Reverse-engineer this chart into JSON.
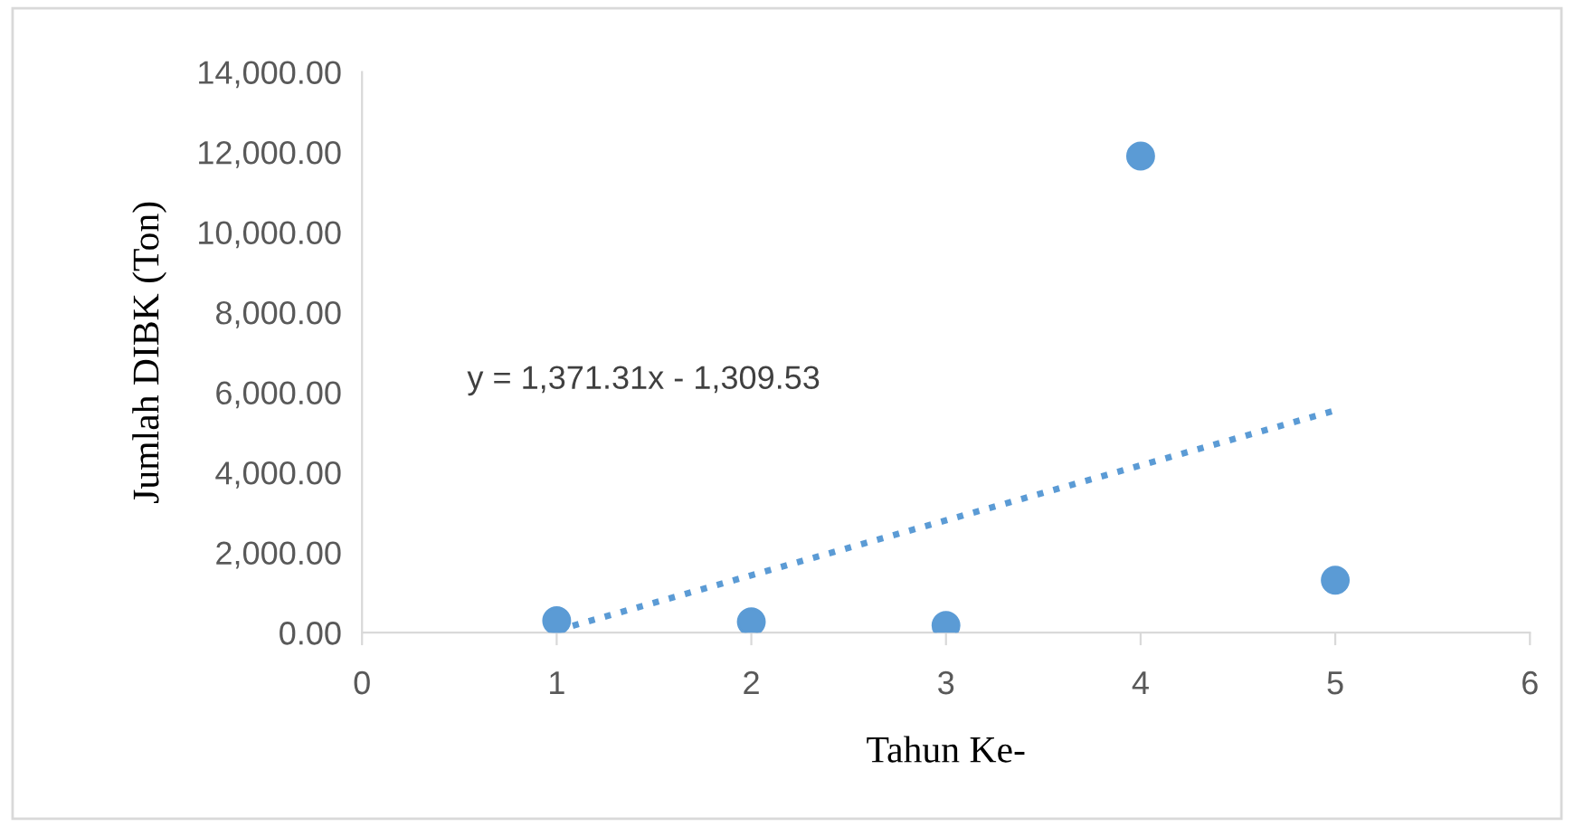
{
  "chart_data": {
    "type": "scatter",
    "xlabel": "Tahun Ke-",
    "ylabel": "Jumlah DIBK (Ton)",
    "x": [
      1,
      2,
      3,
      4,
      5
    ],
    "series": [
      {
        "color": "#5b9bd5",
        "values": [
          300,
          270,
          180,
          11900,
          1310
        ],
        "marker": "circle"
      },
      {
        "type": "line",
        "color": "#5b9bd5",
        "x": [
          1,
          5
        ],
        "values": [
          60,
          5550
        ],
        "line_style": "dotted",
        "marker": "none"
      }
    ],
    "annotations": [
      "y = 1,371.31x - 1,309.53"
    ],
    "xlim": [
      0,
      6
    ],
    "xticks": [
      0,
      1,
      2,
      3,
      4,
      5,
      6
    ],
    "ylim": [
      0,
      14000
    ],
    "yticks": [
      {
        "value": 0,
        "label": "0.00"
      },
      {
        "value": 2000,
        "label": "2,000.00"
      },
      {
        "value": 4000,
        "label": "4,000.00"
      },
      {
        "value": 6000,
        "label": "6,000.00"
      },
      {
        "value": 8000,
        "label": "8,000.00"
      },
      {
        "value": 10000,
        "label": "10,000.00"
      },
      {
        "value": 12000,
        "label": "12,000.00"
      },
      {
        "value": 14000,
        "label": "14,000.00"
      }
    ],
    "grid": false,
    "legend": false
  }
}
